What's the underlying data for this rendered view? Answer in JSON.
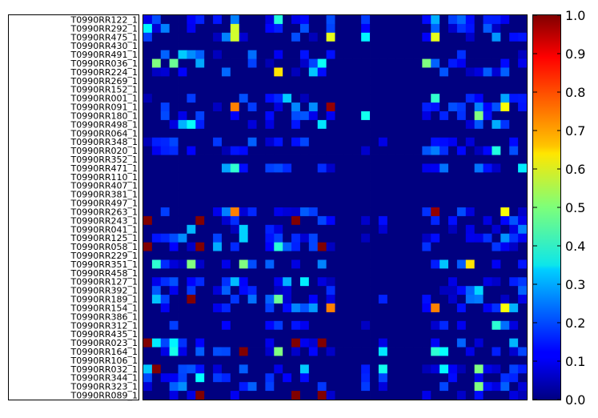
{
  "chart_data": {
    "type": "heatmap",
    "colormap": "jet",
    "grid": false,
    "title": "",
    "xlabel": "",
    "ylabel": "",
    "row_labels": [
      "T0990RR122_1",
      "T0990RR292_1",
      "T0990RR475_1",
      "T0990RR430_1",
      "T0990RR491_1",
      "T0990RR036_1",
      "T0990RR224_1",
      "T0990RR269_1",
      "T0990RR152_1",
      "T0990RR001_1",
      "T0990RR091_1",
      "T0990RR180_1",
      "T0990RR498_1",
      "T0990RR064_1",
      "T0990RR348_1",
      "T0990RR020_1",
      "T0990RR352_1",
      "T0990RR471_1",
      "T0990RR110_1",
      "T0990RR407_1",
      "T0990RR381_1",
      "T0990RR497_1",
      "T0990RR263_1",
      "T0990RR243_1",
      "T0990RR041_1",
      "T0990RR125_1",
      "T0990RR058_1",
      "T0990RR229_1",
      "T0990RR351_1",
      "T0990RR458_1",
      "T0990RR127_1",
      "T0990RR392_1",
      "T0990RR189_1",
      "T0990RR154_1",
      "T0990RR386_1",
      "T0990RR312_1",
      "T0990RR435_1",
      "T0990RR023_1",
      "T0990RR164_1",
      "T0990RR106_1",
      "T0990RR032_1",
      "T0990RR344_1",
      "T0990RR323_1",
      "T0990RR089_1"
    ],
    "n_columns": 44,
    "zlim": [
      0.0,
      1.0
    ],
    "colorbar_ticks": [
      "0.0",
      "0.1",
      "0.2",
      "0.3",
      "0.4",
      "0.5",
      "0.6",
      "0.7",
      "0.8",
      "0.9",
      "1.0"
    ],
    "approx_values_sparse": [
      {
        "row": "T0990RR292_1",
        "col": 10,
        "value": 0.58
      },
      {
        "row": "T0990RR475_1",
        "col": 10,
        "value": 0.58
      },
      {
        "row": "T0990RR475_1",
        "col": 21,
        "value": 0.6
      },
      {
        "row": "T0990RR475_1",
        "col": 33,
        "value": 0.6
      },
      {
        "row": "T0990RR036_1",
        "col": 1,
        "value": 0.5
      },
      {
        "row": "T0990RR036_1",
        "col": 3,
        "value": 0.48
      },
      {
        "row": "T0990RR036_1",
        "col": 32,
        "value": 0.5
      },
      {
        "row": "T0990RR224_1",
        "col": 15,
        "value": 0.65
      },
      {
        "row": "T0990RR091_1",
        "col": 10,
        "value": 0.75
      },
      {
        "row": "T0990RR091_1",
        "col": 21,
        "value": 0.98
      },
      {
        "row": "T0990RR091_1",
        "col": 41,
        "value": 0.62
      },
      {
        "row": "T0990RR180_1",
        "col": 38,
        "value": 0.5
      },
      {
        "row": "T0990RR471_1",
        "col": 10,
        "value": 0.42
      },
      {
        "row": "T0990RR263_1",
        "col": 10,
        "value": 0.75
      },
      {
        "row": "T0990RR263_1",
        "col": 33,
        "value": 0.98
      },
      {
        "row": "T0990RR263_1",
        "col": 41,
        "value": 0.62
      },
      {
        "row": "T0990RR243_1",
        "col": 0,
        "value": 1.0
      },
      {
        "row": "T0990RR243_1",
        "col": 6,
        "value": 1.0
      },
      {
        "row": "T0990RR243_1",
        "col": 17,
        "value": 1.0
      },
      {
        "row": "T0990RR058_1",
        "col": 0,
        "value": 1.0
      },
      {
        "row": "T0990RR058_1",
        "col": 6,
        "value": 1.0
      },
      {
        "row": "T0990RR058_1",
        "col": 20,
        "value": 1.0
      },
      {
        "row": "T0990RR351_1",
        "col": 5,
        "value": 0.5
      },
      {
        "row": "T0990RR351_1",
        "col": 11,
        "value": 0.5
      },
      {
        "row": "T0990RR351_1",
        "col": 37,
        "value": 0.65
      },
      {
        "row": "T0990RR189_1",
        "col": 5,
        "value": 1.0
      },
      {
        "row": "T0990RR189_1",
        "col": 15,
        "value": 0.48
      },
      {
        "row": "T0990RR154_1",
        "col": 21,
        "value": 0.75
      },
      {
        "row": "T0990RR154_1",
        "col": 33,
        "value": 0.75
      },
      {
        "row": "T0990RR154_1",
        "col": 41,
        "value": 0.62
      },
      {
        "row": "T0990RR023_1",
        "col": 0,
        "value": 1.0
      },
      {
        "row": "T0990RR023_1",
        "col": 17,
        "value": 1.0
      },
      {
        "row": "T0990RR023_1",
        "col": 20,
        "value": 1.0
      },
      {
        "row": "T0990RR164_1",
        "col": 11,
        "value": 1.0
      },
      {
        "row": "T0990RR164_1",
        "col": 15,
        "value": 0.5
      },
      {
        "row": "T0990RR032_1",
        "col": 1,
        "value": 1.0
      },
      {
        "row": "T0990RR032_1",
        "col": 38,
        "value": 0.5
      },
      {
        "row": "T0990RR323_1",
        "col": 38,
        "value": 0.5
      },
      {
        "row": "T0990RR089_1",
        "col": 6,
        "value": 1.0
      },
      {
        "row": "T0990RR089_1",
        "col": 17,
        "value": 1.0
      },
      {
        "row": "T0990RR089_1",
        "col": 20,
        "value": 1.0
      }
    ]
  }
}
